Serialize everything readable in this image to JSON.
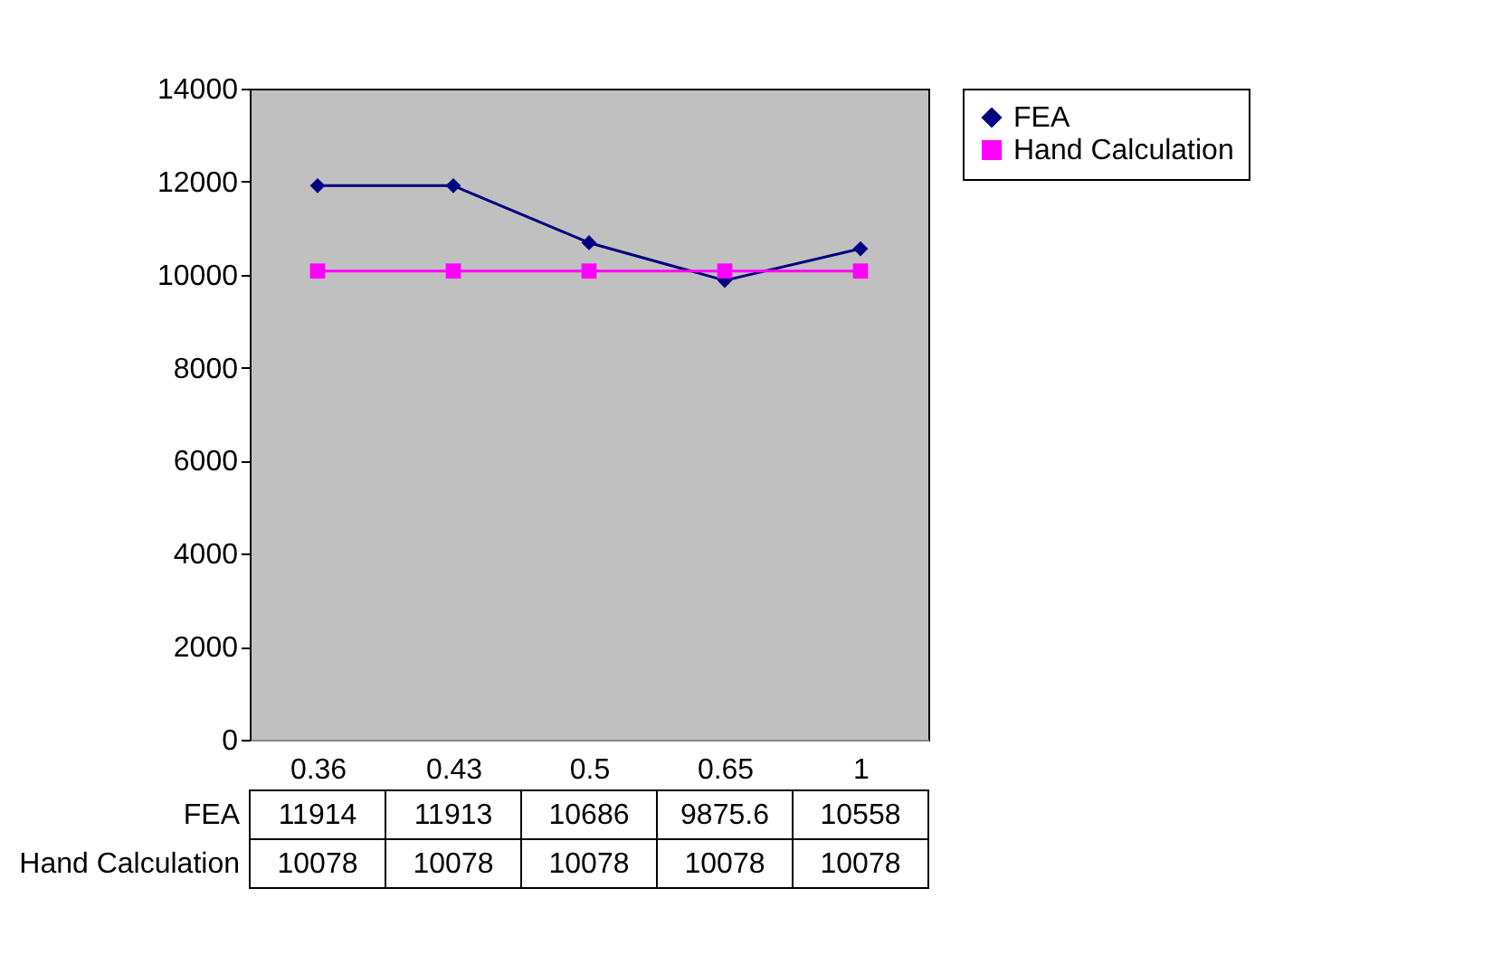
{
  "chart_data": {
    "type": "line",
    "categories": [
      "0.36",
      "0.43",
      "0.5",
      "0.65",
      "1"
    ],
    "series": [
      {
        "name": "FEA",
        "color": "#000080",
        "marker": "diamond",
        "values": [
          11914,
          11913,
          10686,
          9875.6,
          10558
        ]
      },
      {
        "name": "Hand Calculation",
        "color": "#ff00ff",
        "marker": "square",
        "values": [
          10078,
          10078,
          10078,
          10078,
          10078
        ]
      }
    ],
    "ylim": [
      0,
      14000
    ],
    "yticks": [
      0,
      2000,
      4000,
      6000,
      8000,
      10000,
      12000,
      14000
    ],
    "grid": false,
    "legend": "right",
    "data_labels": true,
    "line_style": "solid"
  }
}
